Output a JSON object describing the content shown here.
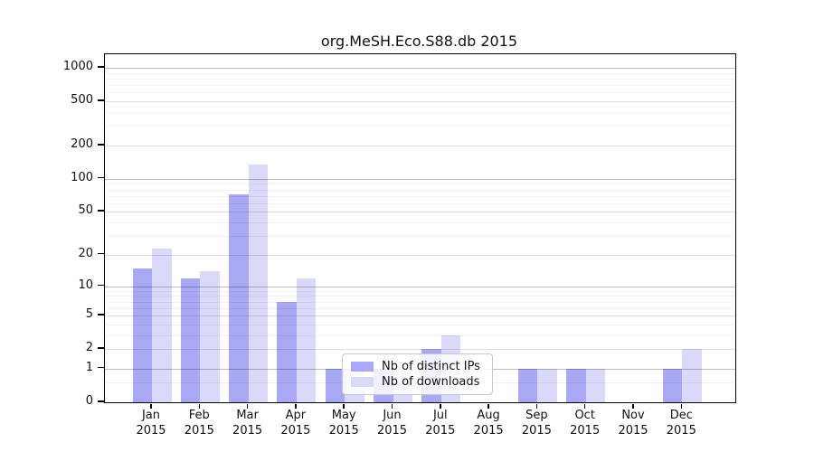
{
  "title": "org.MeSH.Eco.S88.db 2015",
  "legend": {
    "items": [
      {
        "label": "Nb of distinct IPs",
        "color": "#a8a8f5"
      },
      {
        "label": "Nb of downloads",
        "color": "#d9d9f9"
      }
    ]
  },
  "y_axis": {
    "tick_labels": [
      "1000",
      "500",
      "200",
      "100",
      "50",
      "20",
      "10",
      "5",
      "2",
      "1",
      "0"
    ]
  },
  "x_axis": {
    "months": [
      "Jan",
      "Feb",
      "Mar",
      "Apr",
      "May",
      "Jun",
      "Jul",
      "Aug",
      "Sep",
      "Oct",
      "Nov",
      "Dec"
    ],
    "year": "2015"
  },
  "chart_data": {
    "type": "bar",
    "title": "org.MeSH.Eco.S88.db 2015",
    "categories": [
      "Jan 2015",
      "Feb 2015",
      "Mar 2015",
      "Apr 2015",
      "May 2015",
      "Jun 2015",
      "Jul 2015",
      "Aug 2015",
      "Sep 2015",
      "Oct 2015",
      "Nov 2015",
      "Dec 2015"
    ],
    "series": [
      {
        "name": "Nb of distinct IPs",
        "color": "#a8a8f5",
        "values": [
          15,
          12,
          72,
          7,
          1,
          1,
          2,
          0,
          1,
          1,
          0,
          1
        ]
      },
      {
        "name": "Nb of downloads",
        "color": "#d9d9f9",
        "values": [
          23,
          14,
          136,
          12,
          1,
          1,
          3,
          0,
          1,
          1,
          0,
          2
        ]
      }
    ],
    "y_scale": "log10(1+x)",
    "y_ticks": [
      0,
      1,
      2,
      5,
      10,
      20,
      50,
      100,
      200,
      500,
      1000
    ],
    "ylim": [
      0,
      1200
    ],
    "grid": true,
    "legend_position": "lower center"
  }
}
